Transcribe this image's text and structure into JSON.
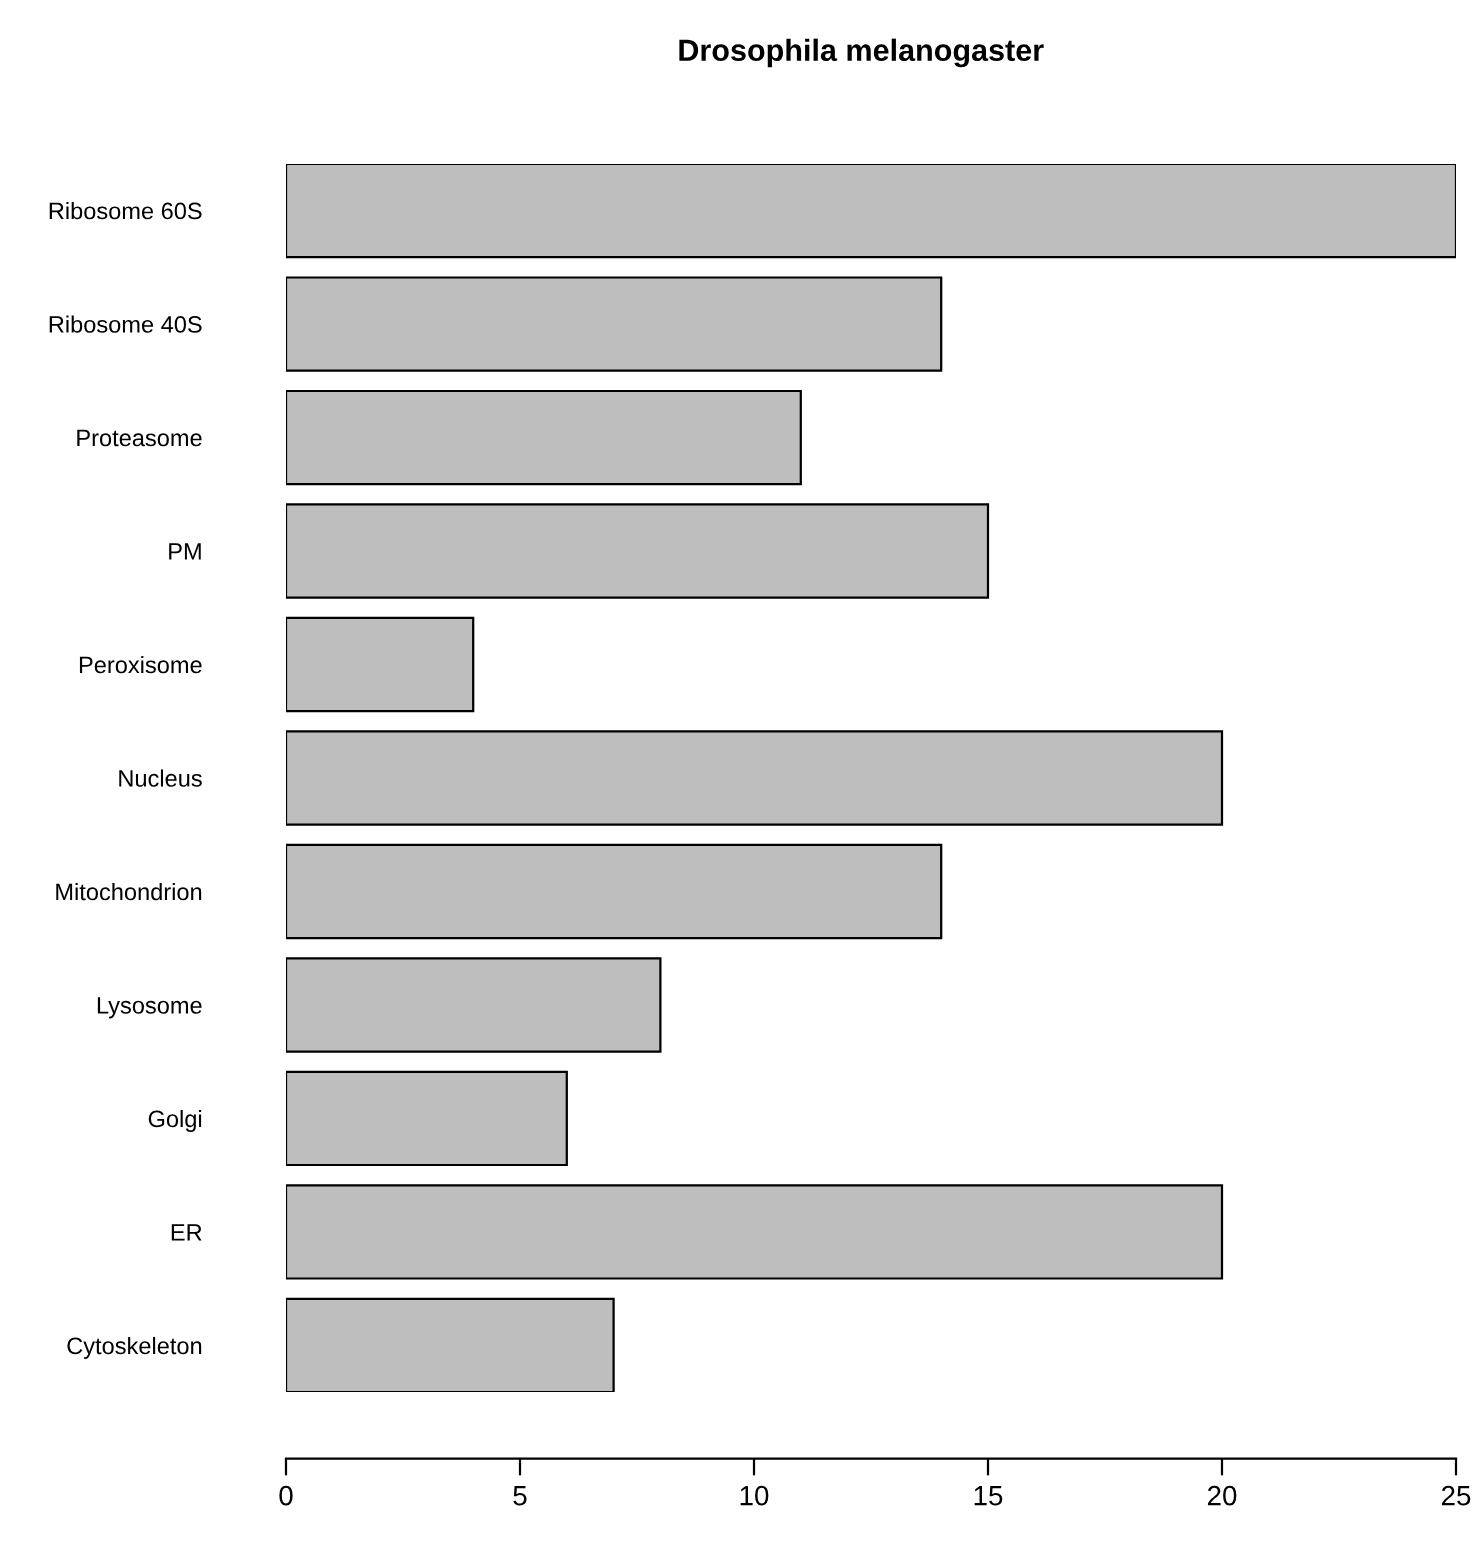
{
  "chart_data": {
    "type": "bar",
    "orientation": "horizontal",
    "title": "Drosophila melanogaster",
    "categories": [
      "Ribosome 60S",
      "Ribosome 40S",
      "Proteasome",
      "PM",
      "Peroxisome",
      "Nucleus",
      "Mitochondrion",
      "Lysosome",
      "Golgi",
      "ER",
      "Cytoskeleton"
    ],
    "values": [
      25,
      14,
      11,
      15,
      4,
      20,
      14,
      8,
      6,
      20,
      7
    ],
    "color": "#bebebe",
    "xlim": [
      0,
      25
    ],
    "xticks": [
      0,
      5,
      10,
      15,
      20,
      25
    ],
    "grid": false
  }
}
